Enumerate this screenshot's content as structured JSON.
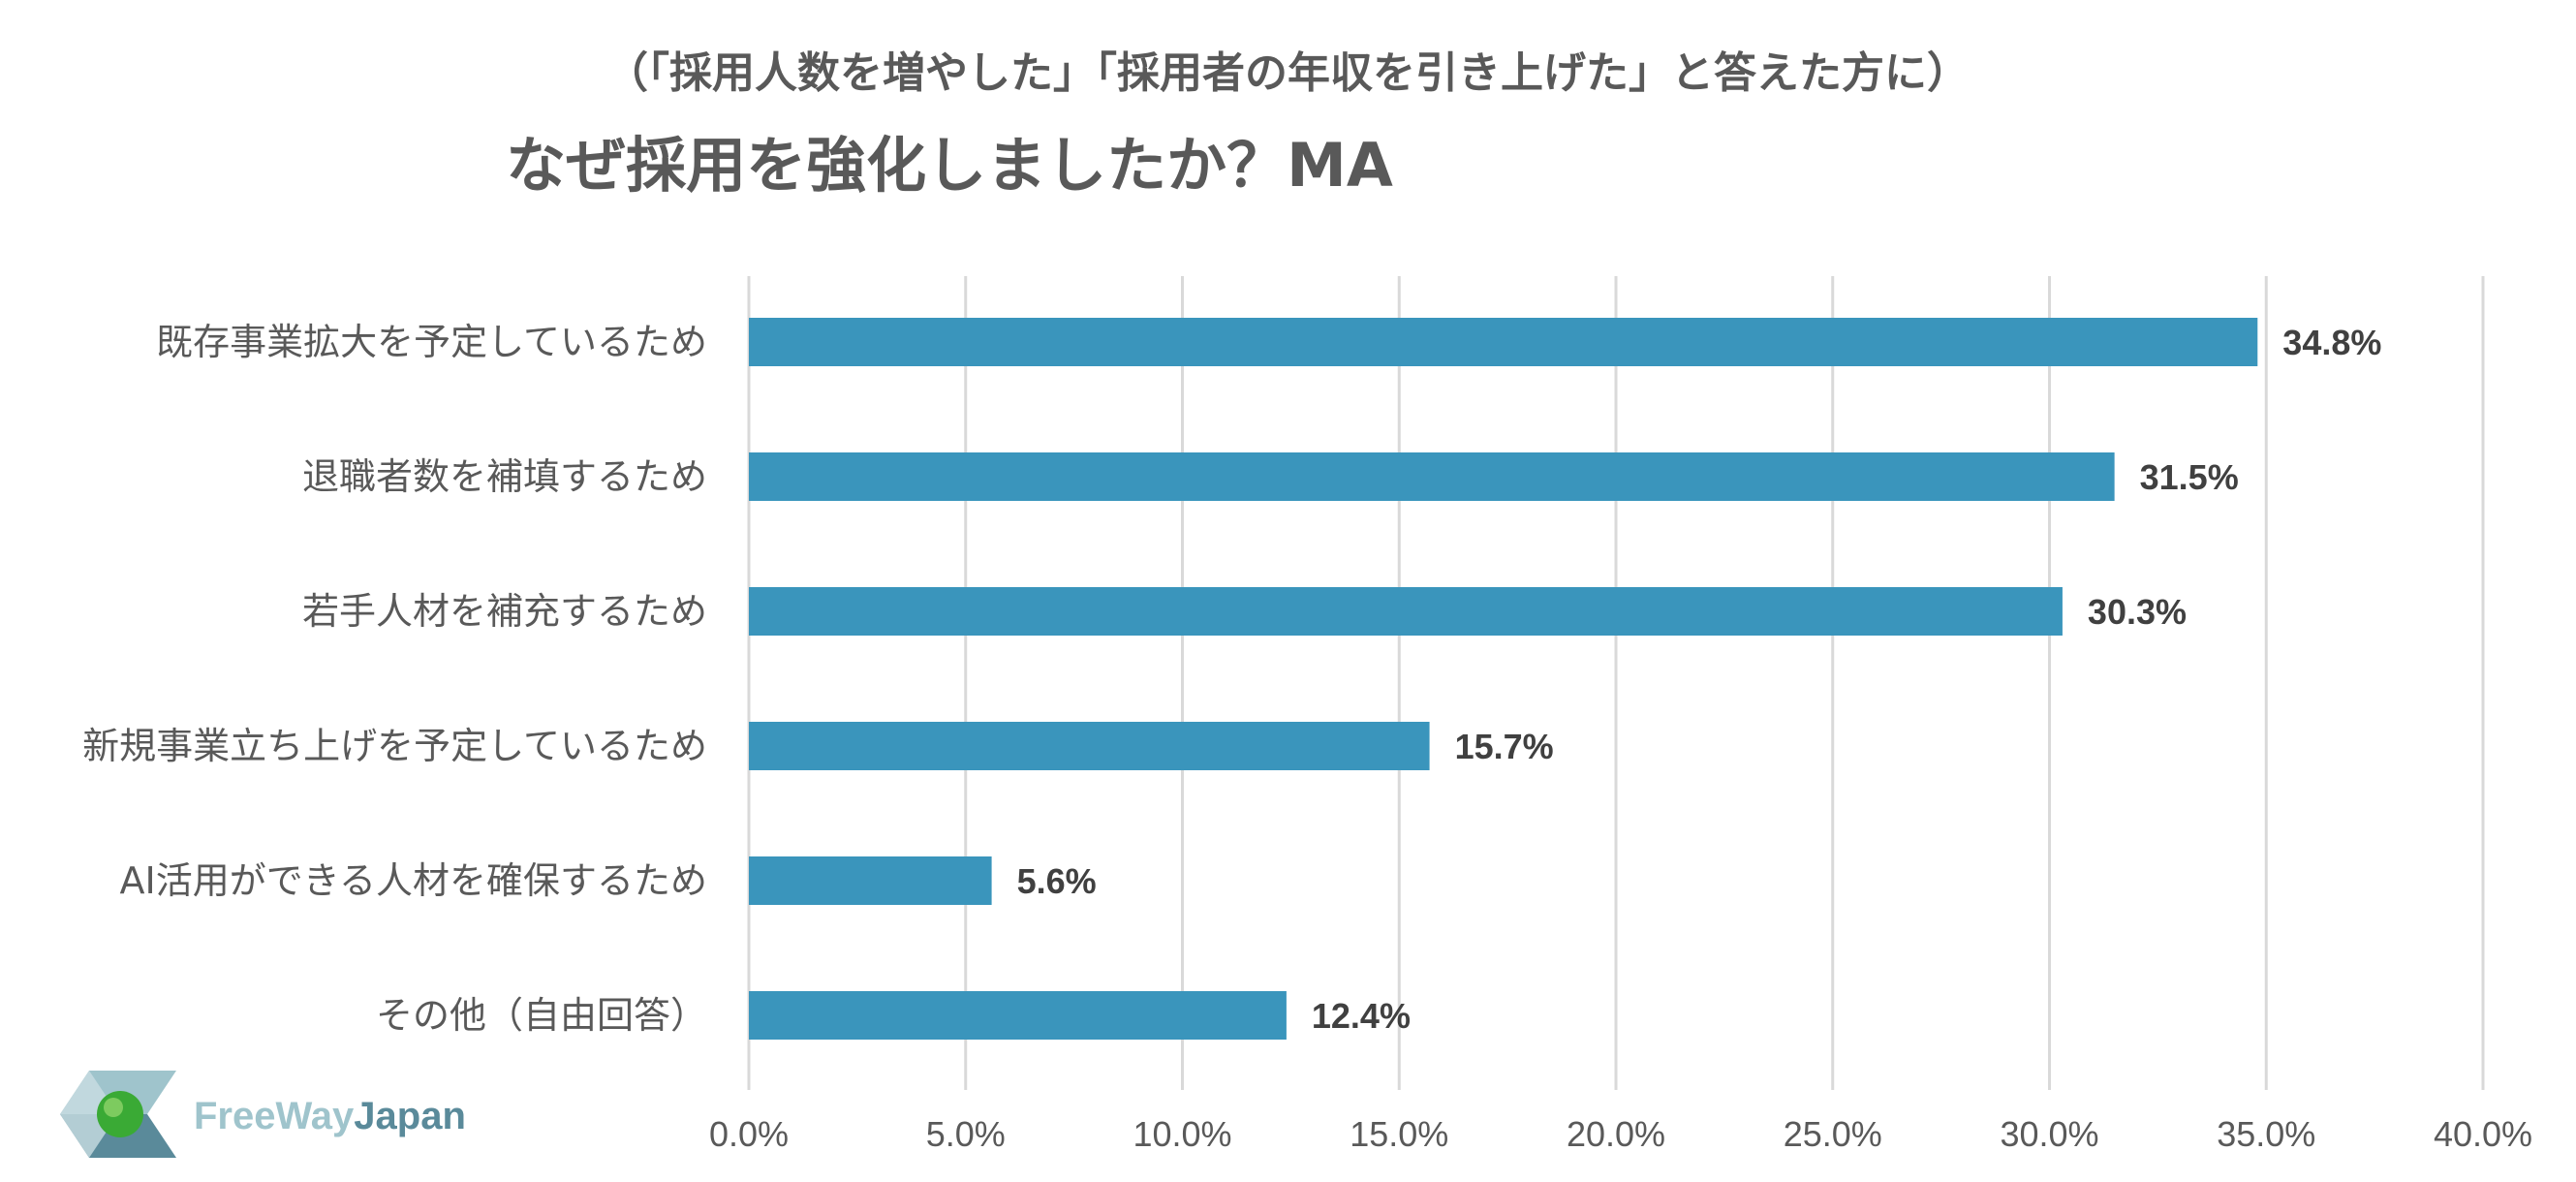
{
  "chart_data": {
    "type": "bar",
    "orientation": "horizontal",
    "subtitle": "（「採用人数を増やした」「採用者の年収を引き上げた」と答えた方に）",
    "title": "なぜ採用を強化しましたか？MA",
    "categories": [
      "既存事業拡大を予定しているため",
      "退職者数を補填するため",
      "若手人材を補充するため",
      "新規事業立ち上げを予定しているため",
      "AI活用ができる人材を確保するため",
      "その他（自由回答）"
    ],
    "values": [
      34.8,
      31.5,
      30.3,
      15.7,
      5.6,
      12.4
    ],
    "value_labels": [
      "34.8%",
      "31.5%",
      "30.3%",
      "15.7%",
      "5.6%",
      "12.4%"
    ],
    "xlim": [
      0,
      40
    ],
    "x_ticks": [
      0,
      5,
      10,
      15,
      20,
      25,
      30,
      35,
      40
    ],
    "x_tick_labels": [
      "0.0%",
      "5.0%",
      "10.0%",
      "15.0%",
      "20.0%",
      "25.0%",
      "30.0%",
      "35.0%",
      "40.0%"
    ],
    "grid": true,
    "bar_color": "#3a95bc"
  },
  "logo": {
    "text_a": "FreeWay",
    "text_b": "Japan"
  }
}
